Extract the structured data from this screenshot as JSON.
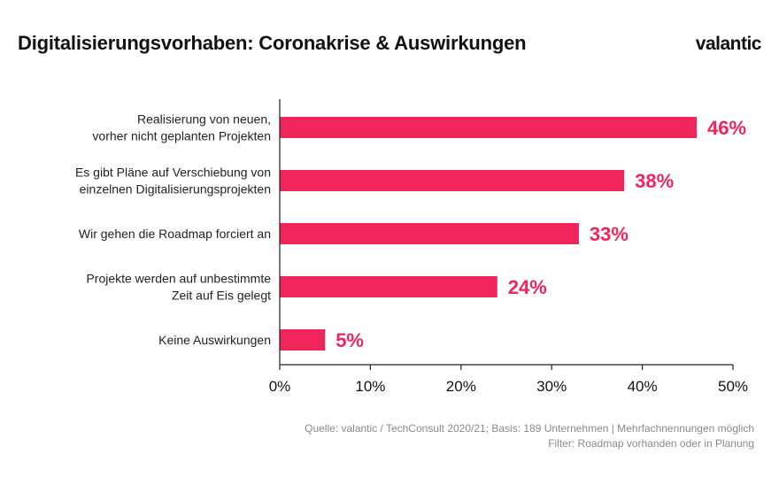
{
  "header": {
    "title": "Digitalisierungsvorhaben: Coronakrise & Auswirkungen",
    "brand": "valantic"
  },
  "footer": {
    "source_line1": "Quelle: valantic / TechConsult 2020/21; Basis: 189 Unternehmen | Mehrfachnennungen möglich",
    "source_line2": "Filter: Roadmap vorhanden oder in Planung"
  },
  "chart_data": {
    "type": "bar",
    "orientation": "horizontal",
    "title": "Digitalisierungsvorhaben: Coronakrise & Auswirkungen",
    "categories": [
      [
        "Realisierung von neuen,",
        "vorher nicht geplanten Projekten"
      ],
      [
        "Es gibt Pläne auf Verschiebung von",
        "einzelnen Digitalisierungsprojekten"
      ],
      [
        "Wir gehen die Roadmap forciert an"
      ],
      [
        "Projekte werden auf unbestimmte",
        "Zeit auf Eis gelegt"
      ],
      [
        "Keine Auswirkungen"
      ]
    ],
    "values": [
      46,
      38,
      33,
      24,
      5
    ],
    "value_labels": [
      "46%",
      "38%",
      "33%",
      "24%",
      "5%"
    ],
    "xlim": [
      0,
      50
    ],
    "xticks": [
      0,
      10,
      20,
      30,
      40,
      50
    ],
    "xtick_labels": [
      "0%",
      "10%",
      "20%",
      "30%",
      "40%",
      "50%"
    ],
    "xlabel": "",
    "ylabel": "",
    "grid": false,
    "bar_color": "#f0255c",
    "label_color": "#f0255c"
  }
}
